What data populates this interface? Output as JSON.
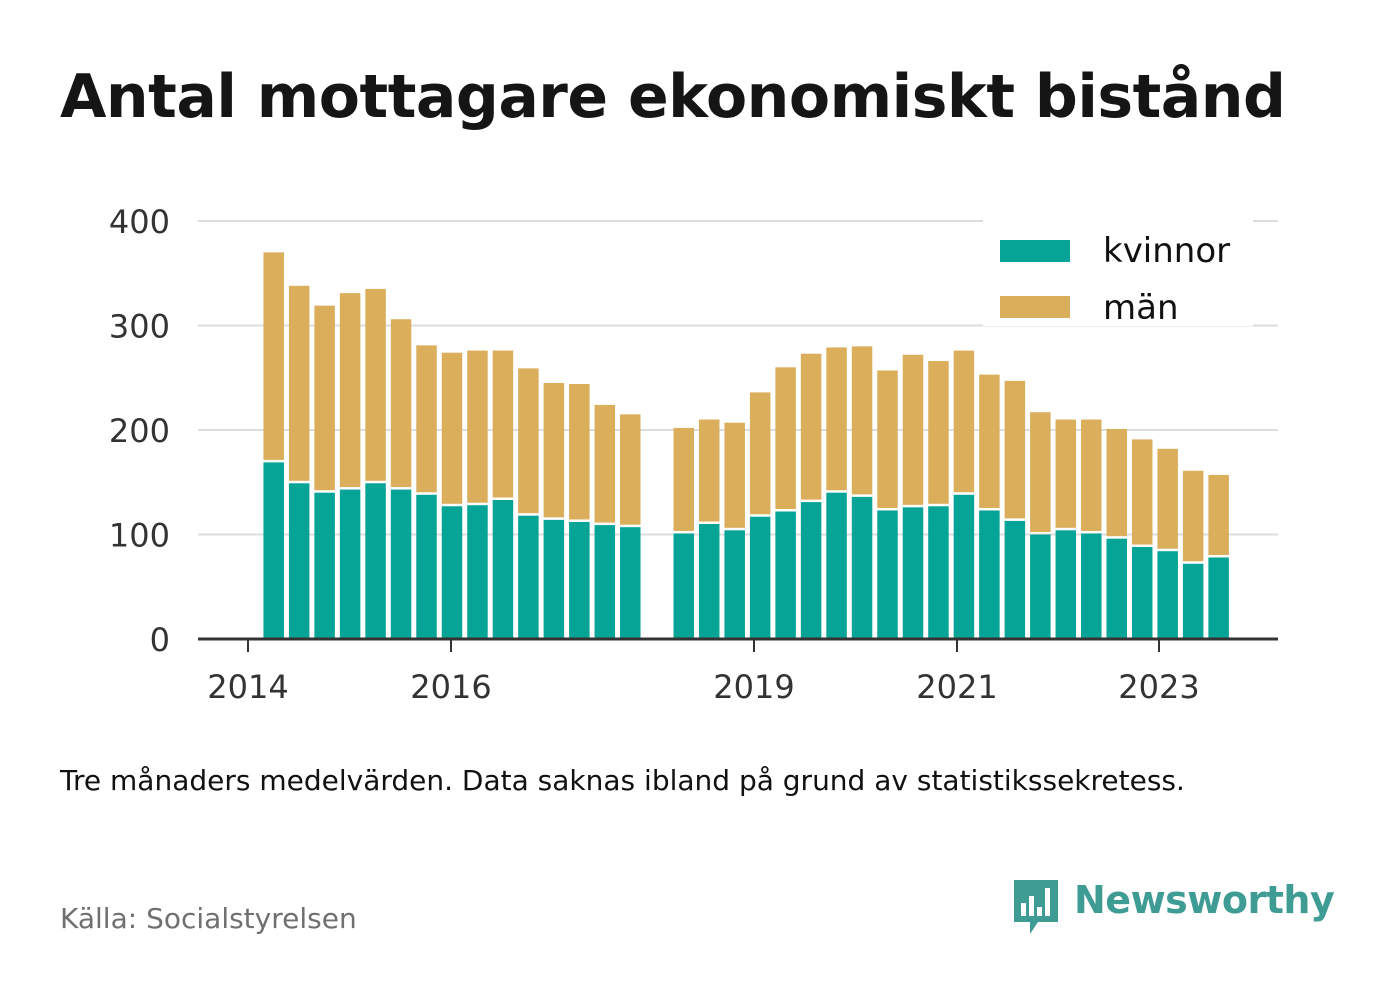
{
  "title": "Antal mottagare ekonomiskt bistånd",
  "note": "Tre månaders medelvärden. Data saknas ibland på grund av statistikssekretess.",
  "source": "Källa: Socialstyrelsen",
  "brand": {
    "name": "Newsworthy",
    "icon": "newsworthy-logo-icon",
    "color": "#3f9c94"
  },
  "colors": {
    "kvinnor": "#05a496",
    "man": "#dbae5c",
    "grid": "#dddddd",
    "axis": "#333333"
  },
  "chart_data": {
    "type": "bar",
    "stacked": true,
    "x_tick_labels": [
      "2014",
      "2016",
      "2019",
      "2021",
      "2023"
    ],
    "y_ticks": [
      0,
      100,
      200,
      300,
      400
    ],
    "ylim": [
      0,
      400
    ],
    "grid": true,
    "legend_position": "top-right",
    "gap_after_index": 14,
    "series": [
      {
        "name": "kvinnor",
        "values": [
          169,
          149,
          140,
          143,
          149,
          143,
          138,
          127,
          128,
          133,
          118,
          114,
          112,
          109,
          107,
          101,
          110,
          104,
          117,
          122,
          131,
          140,
          136,
          123,
          126,
          127,
          138,
          123,
          113,
          100,
          104,
          101,
          96,
          88,
          84,
          72,
          78
        ]
      },
      {
        "name": "män",
        "values": [
          201,
          189,
          179,
          188,
          186,
          163,
          143,
          147,
          148,
          143,
          141,
          131,
          132,
          115,
          108,
          101,
          100,
          103,
          119,
          138,
          142,
          139,
          144,
          134,
          146,
          139,
          138,
          130,
          134,
          117,
          106,
          109,
          105,
          103,
          98,
          89,
          79
        ]
      }
    ]
  }
}
